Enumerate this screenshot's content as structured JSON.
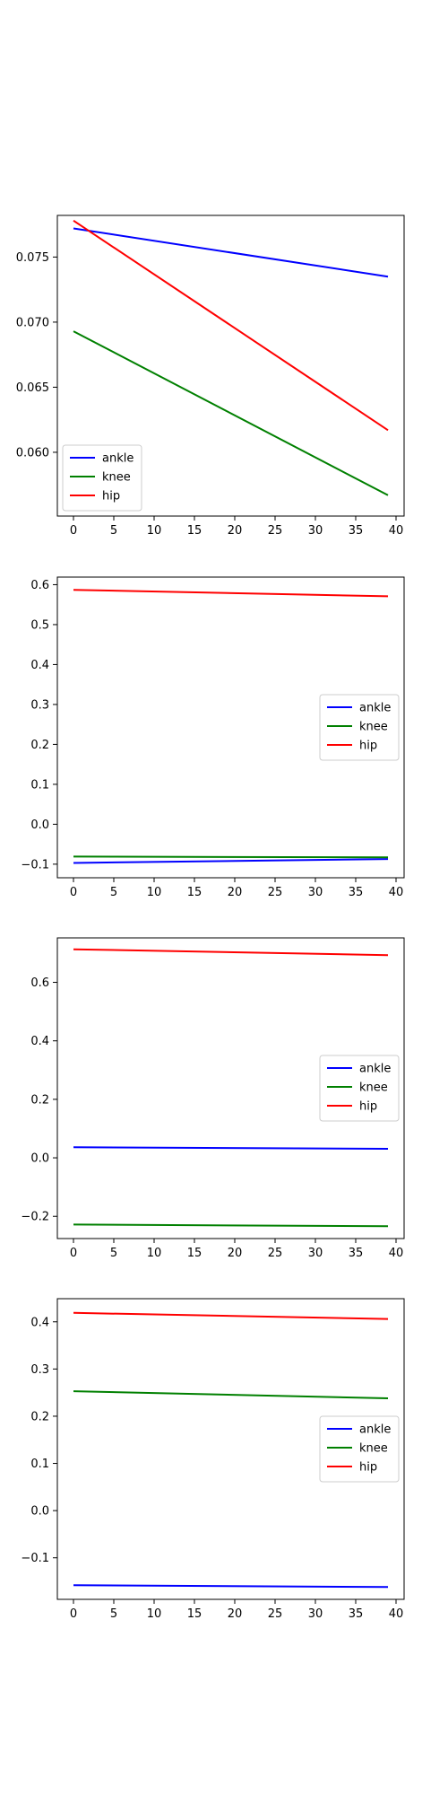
{
  "chart_data": [
    {
      "type": "line",
      "x": [
        0,
        39
      ],
      "xticks": [
        0,
        5,
        10,
        15,
        20,
        25,
        30,
        35,
        40
      ],
      "xlim": [
        -2,
        41
      ],
      "yticks": [
        0.06,
        0.065,
        0.07,
        0.075
      ],
      "ytick_labels": [
        "0.060",
        "0.065",
        "0.070",
        "0.075"
      ],
      "ylim": [
        0.0551,
        0.0782
      ],
      "legend_position": "lower left",
      "grid": false,
      "series": [
        {
          "name": "ankle",
          "color": "#0000ff",
          "values": [
            0.0772,
            0.0735
          ]
        },
        {
          "name": "knee",
          "color": "#008000",
          "values": [
            0.0693,
            0.0567
          ]
        },
        {
          "name": "hip",
          "color": "#ff0000",
          "values": [
            0.0778,
            0.0617
          ]
        }
      ]
    },
    {
      "type": "line",
      "x": [
        0,
        39
      ],
      "xticks": [
        0,
        5,
        10,
        15,
        20,
        25,
        30,
        35,
        40
      ],
      "xlim": [
        -2,
        41
      ],
      "yticks": [
        -0.1,
        0.0,
        0.1,
        0.2,
        0.3,
        0.4,
        0.5,
        0.6
      ],
      "ytick_labels": [
        "−0.1",
        "0.0",
        "0.1",
        "0.2",
        "0.3",
        "0.4",
        "0.5",
        "0.6"
      ],
      "ylim": [
        -0.134,
        0.619
      ],
      "legend_position": "center right",
      "grid": false,
      "series": [
        {
          "name": "ankle",
          "color": "#0000ff",
          "values": [
            -0.097,
            -0.087
          ]
        },
        {
          "name": "knee",
          "color": "#008000",
          "values": [
            -0.081,
            -0.083
          ]
        },
        {
          "name": "hip",
          "color": "#ff0000",
          "values": [
            0.587,
            0.571
          ]
        }
      ]
    },
    {
      "type": "line",
      "x": [
        0,
        39
      ],
      "xticks": [
        0,
        5,
        10,
        15,
        20,
        25,
        30,
        35,
        40
      ],
      "xlim": [
        -2,
        41
      ],
      "yticks": [
        -0.2,
        0.0,
        0.2,
        0.4,
        0.6
      ],
      "ytick_labels": [
        "−0.2",
        "0.0",
        "0.2",
        "0.4",
        "0.6"
      ],
      "ylim": [
        -0.276,
        0.752
      ],
      "legend_position": "center right",
      "grid": false,
      "series": [
        {
          "name": "ankle",
          "color": "#0000ff",
          "values": [
            0.036,
            0.031
          ]
        },
        {
          "name": "knee",
          "color": "#008000",
          "values": [
            -0.228,
            -0.234
          ]
        },
        {
          "name": "hip",
          "color": "#ff0000",
          "values": [
            0.713,
            0.693
          ]
        }
      ]
    },
    {
      "type": "line",
      "x": [
        0,
        39
      ],
      "xticks": [
        0,
        5,
        10,
        15,
        20,
        25,
        30,
        35,
        40
      ],
      "xlim": [
        -2,
        41
      ],
      "yticks": [
        -0.1,
        0.0,
        0.1,
        0.2,
        0.3,
        0.4
      ],
      "ytick_labels": [
        "−0.1",
        "0.0",
        "0.1",
        "0.2",
        "0.3",
        "0.4"
      ],
      "ylim": [
        -0.188,
        0.449
      ],
      "legend_position": "center right",
      "grid": false,
      "series": [
        {
          "name": "ankle",
          "color": "#0000ff",
          "values": [
            -0.158,
            -0.162
          ]
        },
        {
          "name": "knee",
          "color": "#008000",
          "values": [
            0.253,
            0.238
          ]
        },
        {
          "name": "hip",
          "color": "#ff0000",
          "values": [
            0.419,
            0.406
          ]
        }
      ]
    }
  ]
}
